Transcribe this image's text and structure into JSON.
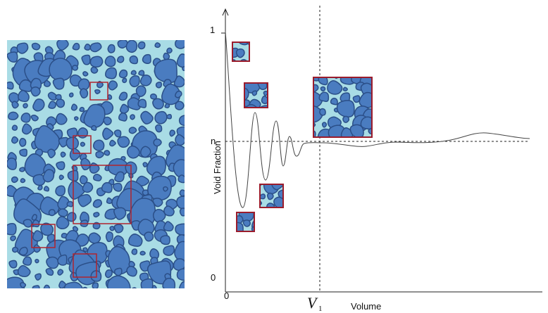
{
  "axes": {
    "y_label": "Void Fraction",
    "x_label": "Volume",
    "y_ticks": [
      "1",
      "n",
      "0"
    ],
    "x_ticks": [
      "0"
    ],
    "marker": {
      "main": "V",
      "sub": "1"
    }
  }
}
